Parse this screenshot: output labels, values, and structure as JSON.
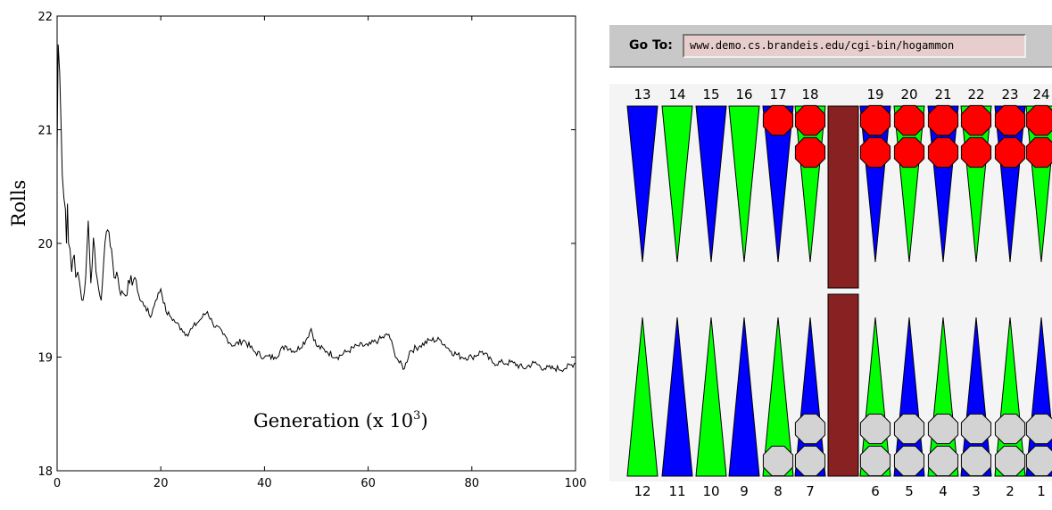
{
  "chart_data": {
    "type": "line",
    "title": "",
    "xlabel": "Generation (x 10",
    "xlabel_superscript": "3",
    "xlabel_suffix": ")",
    "ylabel": "Rolls",
    "xlim": [
      0,
      100
    ],
    "ylim": [
      18,
      22
    ],
    "x_ticks": [
      0,
      20,
      40,
      60,
      80,
      100
    ],
    "y_ticks": [
      18,
      19,
      20,
      21,
      22
    ],
    "grid": false,
    "series": [
      {
        "x": [
          0,
          0.2,
          0.5,
          0.8,
          1.0,
          1.3,
          1.6,
          1.8,
          2.0,
          2.2,
          2.5,
          2.8,
          3.0,
          3.3,
          3.6,
          4.0,
          4.5,
          5.0,
          5.5,
          6.0,
          6.5,
          7.0,
          7.5,
          8.0,
          8.5,
          9.0,
          9.5,
          10.0,
          10.5,
          11.0,
          11.5,
          12.0,
          13.0,
          14.0,
          15.0,
          16.0,
          17.0,
          18.0,
          19.0,
          20.0,
          21.0,
          22.0,
          23.0,
          24.0,
          25.0,
          26.0,
          27.0,
          28.0,
          29.0,
          30.0,
          32.0,
          34.0,
          36.0,
          38.0,
          40.0,
          42.0,
          44.0,
          46.0,
          48.0,
          49.0,
          50.0,
          52.0,
          54.0,
          56.0,
          58.0,
          60.0,
          62.0,
          64.0,
          65.0,
          66.0,
          67.0,
          68.0,
          70.0,
          72.0,
          74.0,
          76.0,
          78.0,
          80.0,
          82.0,
          84.0,
          86.0,
          88.0,
          90.0,
          92.0,
          94.0,
          96.0,
          98.0,
          100.0
        ],
        "y": [
          20.8,
          21.75,
          21.5,
          21.0,
          20.6,
          20.4,
          20.3,
          20.0,
          20.35,
          20.0,
          19.95,
          19.75,
          19.85,
          19.9,
          19.7,
          19.75,
          19.6,
          19.5,
          19.7,
          20.2,
          19.65,
          20.05,
          19.75,
          19.6,
          19.5,
          19.85,
          20.1,
          20.1,
          19.95,
          19.7,
          19.75,
          19.6,
          19.55,
          19.65,
          19.7,
          19.5,
          19.45,
          19.35,
          19.5,
          19.6,
          19.4,
          19.35,
          19.3,
          19.25,
          19.2,
          19.25,
          19.3,
          19.35,
          19.4,
          19.3,
          19.2,
          19.1,
          19.15,
          19.05,
          19.0,
          19.0,
          19.1,
          19.05,
          19.15,
          19.25,
          19.1,
          19.05,
          19.0,
          19.05,
          19.1,
          19.1,
          19.15,
          19.2,
          19.05,
          18.95,
          18.9,
          19.05,
          19.1,
          19.15,
          19.15,
          19.05,
          19.0,
          19.0,
          19.05,
          18.95,
          18.95,
          18.95,
          18.9,
          18.95,
          18.9,
          18.9,
          18.9,
          18.95
        ]
      }
    ]
  },
  "browser": {
    "goto_label": "Go To:",
    "url": "www.demo.cs.brandeis.edu/cgi-bin/hogammon"
  },
  "board": {
    "top_points": [
      "13",
      "14",
      "15",
      "16",
      "17",
      "18",
      "19",
      "20",
      "21",
      "22",
      "23",
      "24"
    ],
    "bottom_points": [
      "12",
      "11",
      "10",
      "9",
      "8",
      "7",
      "6",
      "5",
      "4",
      "3",
      "2",
      "1"
    ],
    "top_checkers": {
      "17": 1,
      "18": 2,
      "19": 2,
      "20": 2,
      "21": 2,
      "22": 2,
      "23": 2,
      "24": 2
    },
    "bottom_checkers": {
      "8": 1,
      "7": 2,
      "6": 2,
      "5": 2,
      "4": 2,
      "3": 2,
      "2": 2,
      "1": 2
    },
    "colors": {
      "blue": "#0000ff",
      "green": "#00ff00",
      "red_checker": "#ff0000",
      "gray_checker": "#d3d3d3",
      "bar": "#882222",
      "board_bg": "#f4f4f4"
    }
  }
}
